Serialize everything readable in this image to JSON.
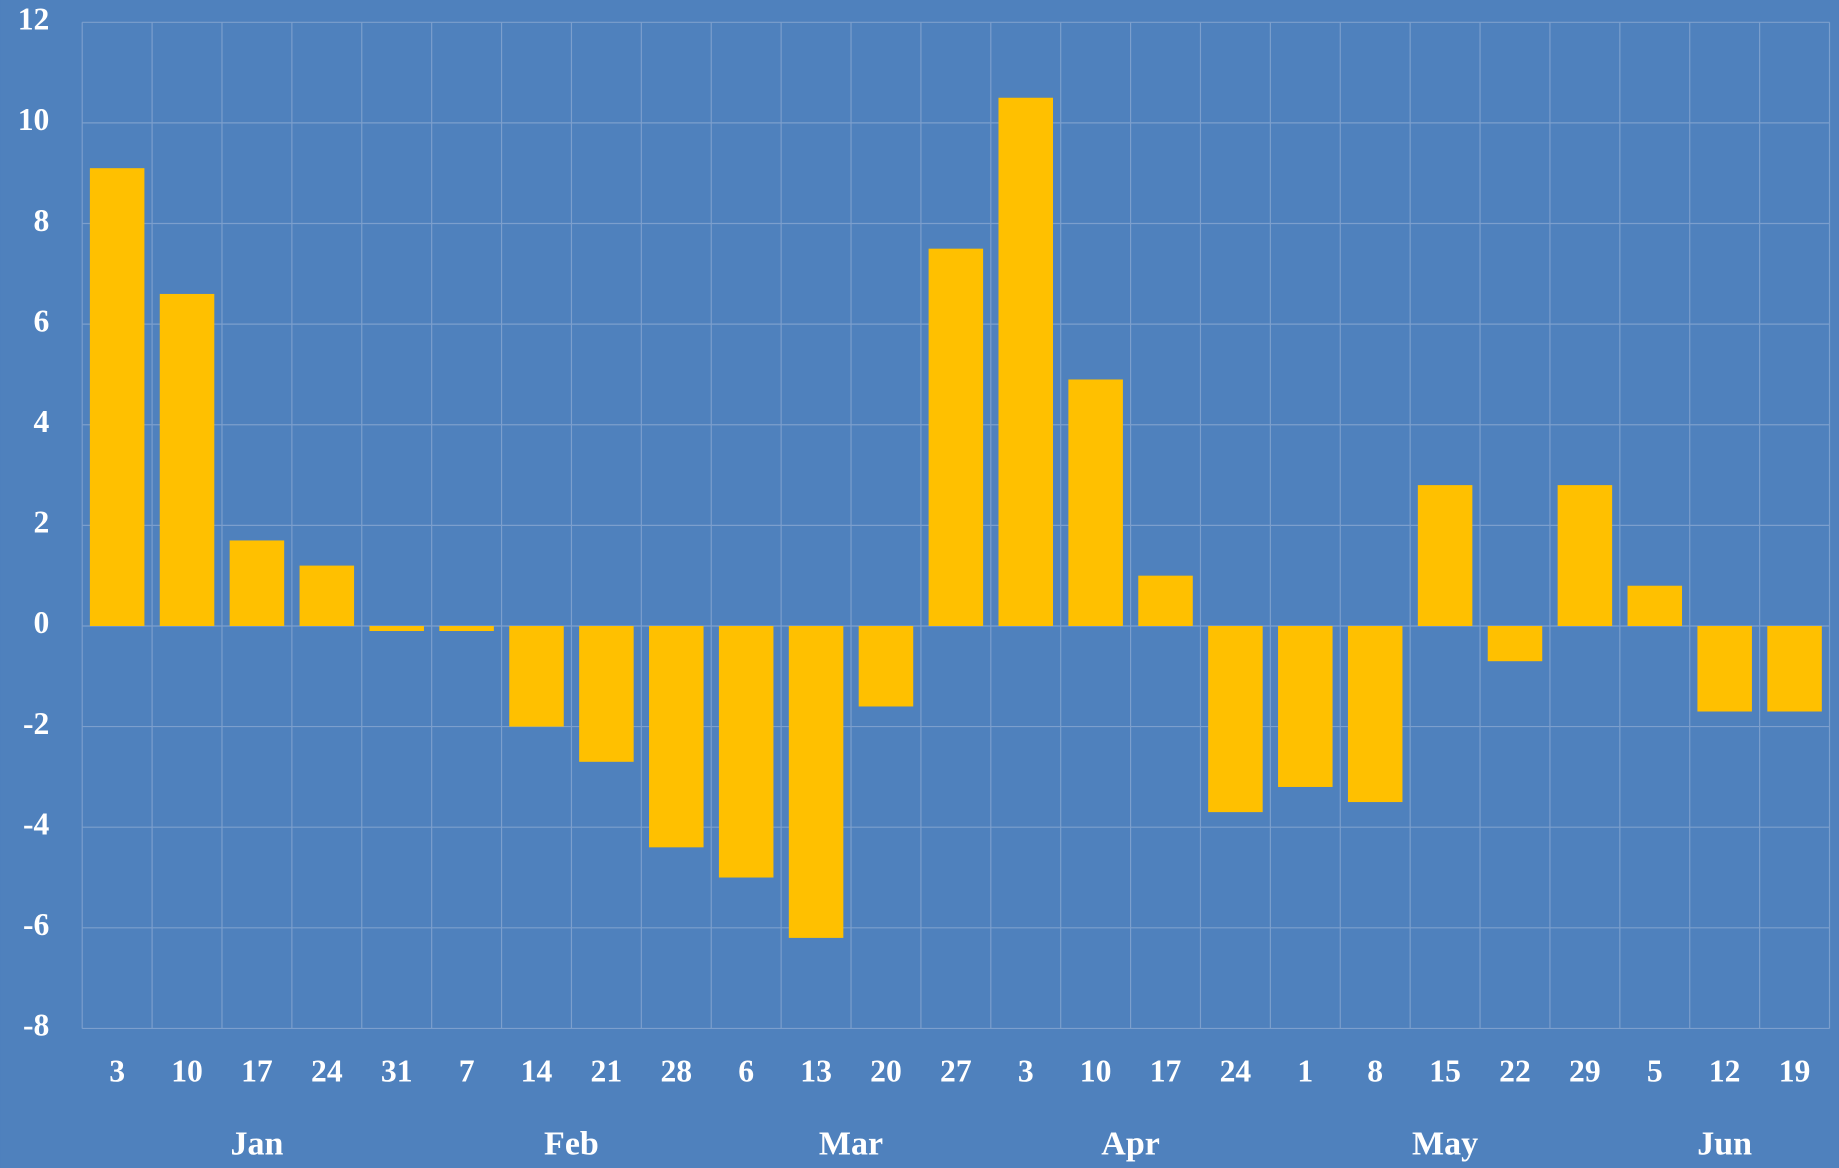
{
  "chart_data": {
    "type": "bar",
    "groups": [
      {
        "label": "Jan",
        "categories": [
          "3",
          "10",
          "17",
          "24",
          "31"
        ]
      },
      {
        "label": "Feb",
        "categories": [
          "7",
          "14",
          "21",
          "28"
        ]
      },
      {
        "label": "Mar",
        "categories": [
          "6",
          "13",
          "20",
          "27"
        ]
      },
      {
        "label": "Apr",
        "categories": [
          "3",
          "10",
          "17",
          "24"
        ]
      },
      {
        "label": "May",
        "categories": [
          "1",
          "8",
          "15",
          "22",
          "29"
        ]
      },
      {
        "label": "Jun",
        "categories": [
          "5",
          "12",
          "19"
        ]
      }
    ],
    "values": [
      9.1,
      6.6,
      1.7,
      1.2,
      -0.1,
      -0.1,
      -2.0,
      -2.7,
      -4.4,
      -5.0,
      -6.2,
      -1.6,
      7.5,
      10.5,
      4.9,
      1.0,
      -3.7,
      -3.2,
      -3.5,
      2.8,
      -0.7,
      2.8,
      0.8,
      -1.7,
      -1.7
    ],
    "color": "#ffc000",
    "ylim": [
      -8,
      12
    ],
    "yticks": [
      -8,
      -6,
      -4,
      -2,
      0,
      2,
      4,
      6,
      8,
      10,
      12
    ],
    "grid": true
  }
}
